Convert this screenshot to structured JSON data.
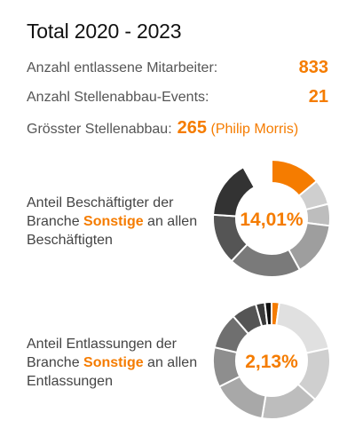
{
  "title": "Total 2020 - 2023",
  "colors": {
    "accent": "#f57c00",
    "text": "#444444"
  },
  "stats": {
    "entlassene": {
      "label": "Anzahl entlassene Mitarbeiter:",
      "value": "833"
    },
    "events": {
      "label": "Anzahl Stellenabbau-Events:",
      "value": "21"
    },
    "groesster": {
      "label": "Grösster Stellenabbau:",
      "value": "265",
      "company": "(Philip Morris)"
    }
  },
  "chart_data": [
    {
      "type": "pie",
      "description_parts": [
        "Anteil Beschäftigter der Branche ",
        "Sonstige",
        " an allen Beschäftigten"
      ],
      "center_label": "14,01%",
      "highlight": "Sonstige",
      "values": [
        14.01,
        7.0,
        6.0,
        15.0,
        20.0,
        14.0,
        16.0,
        7.99
      ],
      "colors": [
        "#f57c00",
        "#cfcfcf",
        "#bdbdbd",
        "#9e9e9e",
        "#7a7a7a",
        "#555555",
        "#333333",
        "#ffffff"
      ]
    },
    {
      "type": "pie",
      "description_parts": [
        "Anteil Entlassungen der Branche ",
        "Sonstige",
        " an allen Entlassungen"
      ],
      "center_label": "2,13%",
      "highlight": "Sonstige",
      "values": [
        2.13,
        19.5,
        15.0,
        16.0,
        15.0,
        11.0,
        10.0,
        7.0,
        2.5,
        1.87
      ],
      "colors": [
        "#f57c00",
        "#e0e0e0",
        "#cfcfcf",
        "#bdbdbd",
        "#a8a8a8",
        "#8e8e8e",
        "#6f6f6f",
        "#555555",
        "#3a3a3a",
        "#111111"
      ]
    }
  ]
}
